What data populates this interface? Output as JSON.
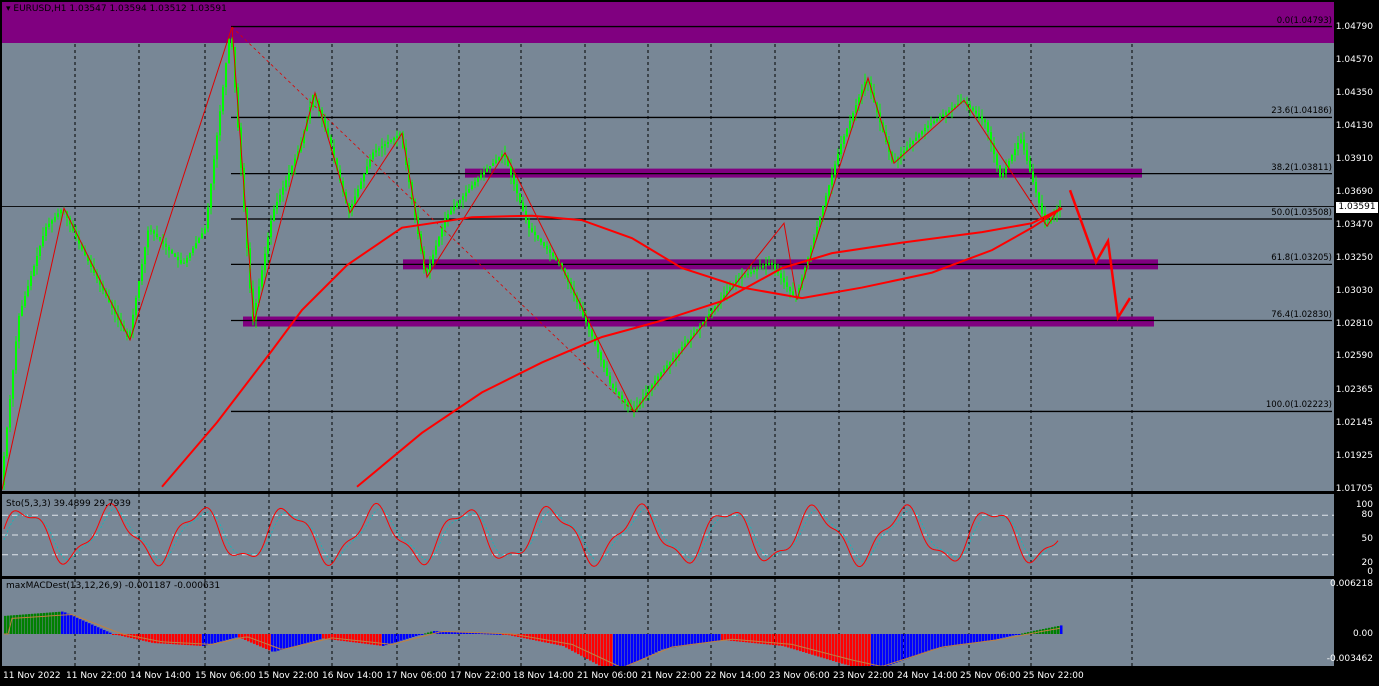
{
  "header": {
    "symbol_line": "EURUSD,H1  1.03547 1.03594 1.03512 1.03591",
    "sto_line": "Sto(5,3,3) 39.4899 29.7939",
    "macd_line": "maxMACDest(13,12,26,9) -0.001187 -0.000631"
  },
  "price_axis": [
    "1.04790",
    "1.04570",
    "1.04350",
    "1.04130",
    "1.03910",
    "1.03690",
    "1.03470",
    "1.03250",
    "1.03030",
    "1.02810",
    "1.02590",
    "1.02365",
    "1.02145",
    "1.01925",
    "1.01705"
  ],
  "current_price": "1.03591",
  "fib_levels": [
    {
      "label": "0.0(1.04793)",
      "price": 1.04793
    },
    {
      "label": "23.6(1.04186)",
      "price": 1.04186
    },
    {
      "label": "38.2(1.03811)",
      "price": 1.03811
    },
    {
      "label": "50.0(1.03508)",
      "price": 1.03508
    },
    {
      "label": "61.8(1.03205)",
      "price": 1.03205
    },
    {
      "label": "76.4(1.02830)",
      "price": 1.0283
    },
    {
      "label": "100.0(1.02223)",
      "price": 1.02223
    }
  ],
  "sto_axis": [
    "100",
    "80",
    "50",
    "20",
    "0"
  ],
  "macd_axis": [
    "0.006218",
    "0.00",
    "-0.003462"
  ],
  "time_axis": [
    "11 Nov 2022",
    "11 Nov 22:00",
    "14 Nov 14:00",
    "15 Nov 06:00",
    "15 Nov 22:00",
    "16 Nov 14:00",
    "17 Nov 06:00",
    "17 Nov 22:00",
    "18 Nov 14:00",
    "21 Nov 06:00",
    "21 Nov 22:00",
    "22 Nov 14:00",
    "23 Nov 06:00",
    "23 Nov 22:00",
    "24 Nov 14:00",
    "25 Nov 06:00",
    "25 Nov 22:00"
  ],
  "colors": {
    "background": "#788796",
    "candle": "#00ff00",
    "ma": "#ff0000",
    "zone": "#800080",
    "forecast": "#ff0000"
  }
}
